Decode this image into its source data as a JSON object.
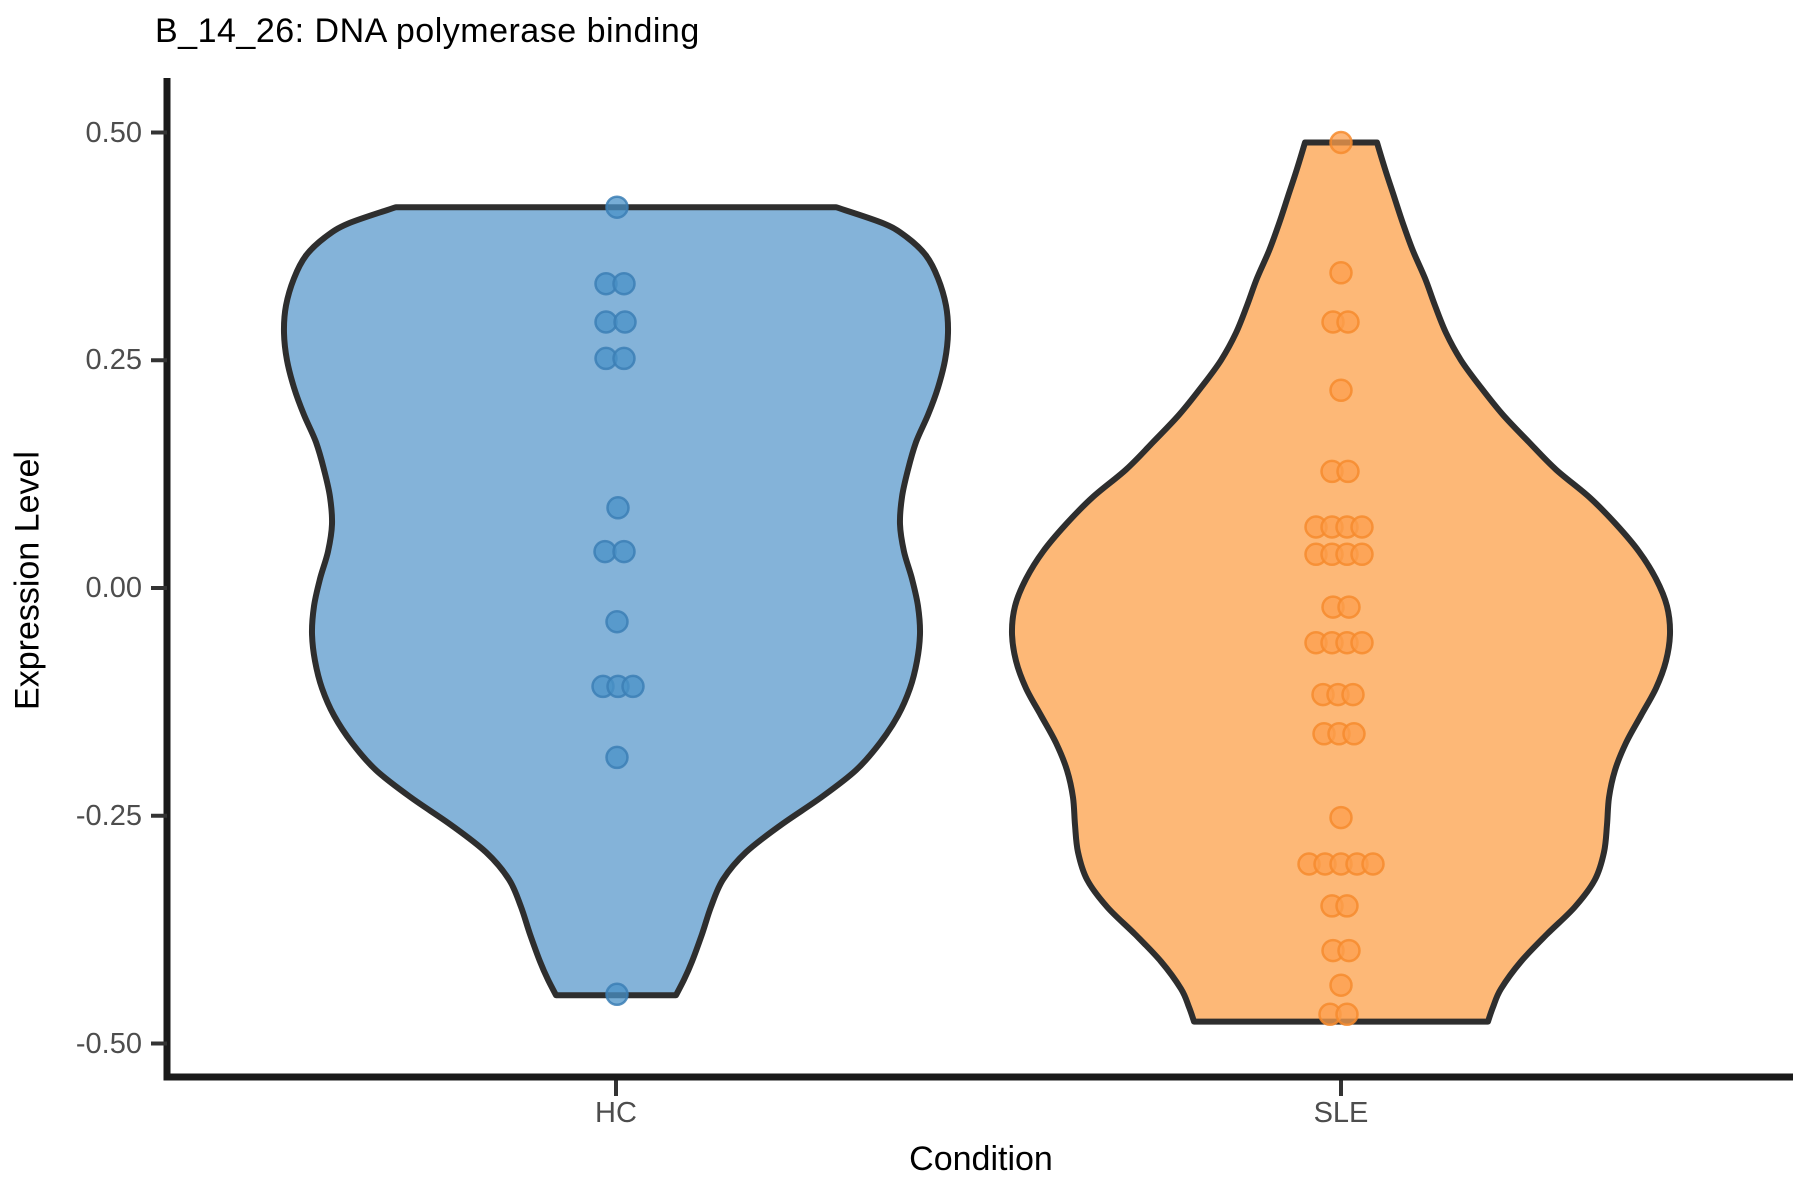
{
  "chart_data": {
    "type": "violin",
    "title": "B_14_26: DNA polymerase binding",
    "xlabel": "Condition",
    "ylabel": "Expression Level",
    "categories": [
      "HC",
      "SLE"
    ],
    "y_axis": {
      "tick_values": [
        0.5,
        0.25,
        0.0,
        -0.25,
        -0.5
      ],
      "tick_labels": [
        "0.50",
        "0.25",
        "0.00",
        "-0.25",
        "-0.50"
      ],
      "ylim": [
        -0.55,
        0.56
      ],
      "grid": false
    },
    "legend": null,
    "series": [
      {
        "name": "HC",
        "fill": "#84B3D9",
        "outline": "#2E2E2E",
        "dot_fill": "#4A92C7",
        "dot_stroke": "#3C7FB5",
        "violin_range": [
          -0.447,
          0.418
        ],
        "profile": [
          [
            0.418,
            220
          ],
          [
            0.4,
            268
          ],
          [
            0.385,
            291
          ],
          [
            0.365,
            310
          ],
          [
            0.34,
            322
          ],
          [
            0.31,
            330
          ],
          [
            0.28,
            332
          ],
          [
            0.25,
            329
          ],
          [
            0.22,
            322
          ],
          [
            0.19,
            312
          ],
          [
            0.16,
            300
          ],
          [
            0.13,
            292
          ],
          [
            0.1,
            286
          ],
          [
            0.07,
            284
          ],
          [
            0.04,
            288
          ],
          [
            0.01,
            296
          ],
          [
            -0.02,
            302
          ],
          [
            -0.05,
            304
          ],
          [
            -0.08,
            301
          ],
          [
            -0.11,
            294
          ],
          [
            -0.14,
            282
          ],
          [
            -0.17,
            264
          ],
          [
            -0.2,
            240
          ],
          [
            -0.23,
            205
          ],
          [
            -0.26,
            165
          ],
          [
            -0.29,
            130
          ],
          [
            -0.32,
            107
          ],
          [
            -0.35,
            95
          ],
          [
            -0.38,
            86
          ],
          [
            -0.41,
            76
          ],
          [
            -0.43,
            68
          ],
          [
            -0.447,
            60
          ]
        ],
        "points": [
          [
            1,
            0.418
          ],
          [
            -10,
            0.334
          ],
          [
            8,
            0.334
          ],
          [
            -10,
            0.292
          ],
          [
            9,
            0.292
          ],
          [
            -10,
            0.252
          ],
          [
            8,
            0.252
          ],
          [
            2,
            0.088
          ],
          [
            -11,
            0.04
          ],
          [
            8,
            0.04
          ],
          [
            1,
            -0.037
          ],
          [
            -13,
            -0.108
          ],
          [
            2,
            -0.108
          ],
          [
            17,
            -0.108
          ],
          [
            1,
            -0.186
          ],
          [
            1,
            -0.446
          ]
        ]
      },
      {
        "name": "SLE",
        "fill": "#FDB877",
        "outline": "#2E2E2E",
        "dot_fill": "#FC9F4D",
        "dot_stroke": "#F68B2E",
        "violin_range": [
          -0.476,
          0.489
        ],
        "profile": [
          [
            0.489,
            36
          ],
          [
            0.46,
            44
          ],
          [
            0.43,
            53
          ],
          [
            0.4,
            62
          ],
          [
            0.37,
            72
          ],
          [
            0.34,
            84
          ],
          [
            0.31,
            94
          ],
          [
            0.28,
            105
          ],
          [
            0.25,
            120
          ],
          [
            0.22,
            140
          ],
          [
            0.19,
            162
          ],
          [
            0.16,
            188
          ],
          [
            0.13,
            215
          ],
          [
            0.1,
            248
          ],
          [
            0.07,
            275
          ],
          [
            0.04,
            298
          ],
          [
            0.01,
            315
          ],
          [
            -0.02,
            326
          ],
          [
            -0.05,
            329
          ],
          [
            -0.08,
            325
          ],
          [
            -0.11,
            315
          ],
          [
            -0.14,
            300
          ],
          [
            -0.17,
            285
          ],
          [
            -0.2,
            274
          ],
          [
            -0.23,
            268
          ],
          [
            -0.26,
            266
          ],
          [
            -0.29,
            263
          ],
          [
            -0.32,
            254
          ],
          [
            -0.35,
            234
          ],
          [
            -0.38,
            206
          ],
          [
            -0.41,
            180
          ],
          [
            -0.44,
            160
          ],
          [
            -0.46,
            152
          ],
          [
            -0.476,
            147
          ]
        ],
        "points": [
          [
            0,
            0.489
          ],
          [
            0,
            0.346
          ],
          [
            -8,
            0.292
          ],
          [
            7,
            0.292
          ],
          [
            0,
            0.217
          ],
          [
            -9,
            0.128
          ],
          [
            7,
            0.128
          ],
          [
            -25,
            0.067
          ],
          [
            -9,
            0.067
          ],
          [
            6,
            0.067
          ],
          [
            21,
            0.067
          ],
          [
            -25,
            0.037
          ],
          [
            -9,
            0.037
          ],
          [
            6,
            0.037
          ],
          [
            21,
            0.037
          ],
          [
            -8,
            -0.021
          ],
          [
            8,
            -0.021
          ],
          [
            -25,
            -0.06
          ],
          [
            -9,
            -0.06
          ],
          [
            6,
            -0.06
          ],
          [
            21,
            -0.06
          ],
          [
            -18,
            -0.117
          ],
          [
            -3,
            -0.117
          ],
          [
            12,
            -0.117
          ],
          [
            -17,
            -0.16
          ],
          [
            -2,
            -0.16
          ],
          [
            13,
            -0.16
          ],
          [
            0,
            -0.252
          ],
          [
            -32,
            -0.303
          ],
          [
            -16,
            -0.303
          ],
          [
            0,
            -0.303
          ],
          [
            16,
            -0.303
          ],
          [
            32,
            -0.303
          ],
          [
            -9,
            -0.349
          ],
          [
            6,
            -0.349
          ],
          [
            -8,
            -0.398
          ],
          [
            8,
            -0.398
          ],
          [
            0,
            -0.436
          ],
          [
            -11,
            -0.468
          ],
          [
            6,
            -0.468
          ]
        ]
      }
    ],
    "style_colors": {
      "axis_line": "#1A1A1A",
      "tick_mark": "#333333",
      "tick_label": "#4D4D4D",
      "title": "#000000",
      "background": "#FFFFFF"
    }
  }
}
